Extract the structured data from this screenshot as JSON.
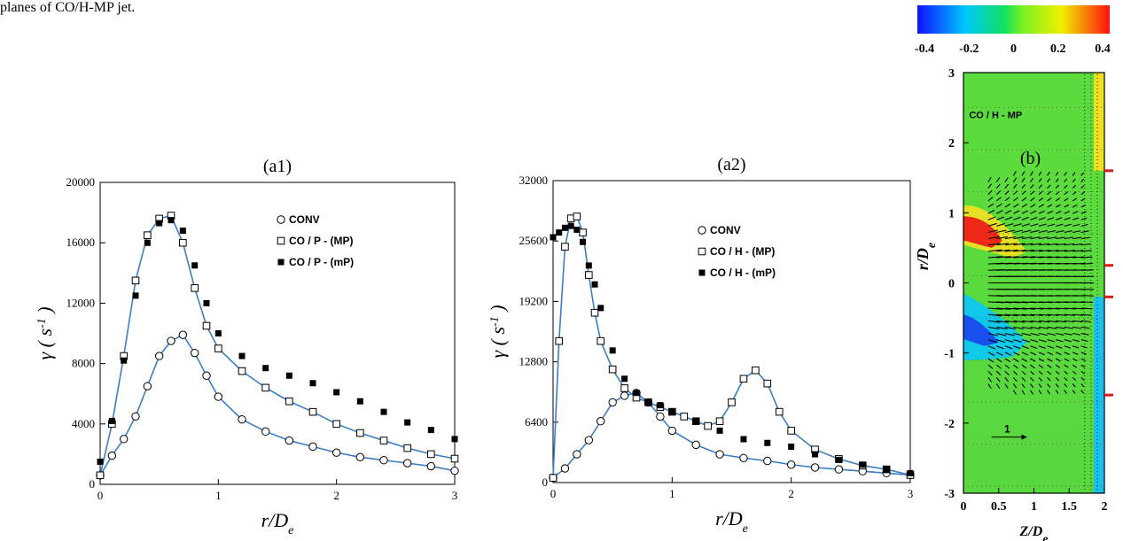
{
  "caption": "planes of CO/H-MP jet.",
  "chart_data": [
    {
      "type": "scatter",
      "title": "(a1)",
      "xlabel": "r/D_e",
      "ylabel": "γ ( s^-1 )",
      "xlim": [
        0,
        3
      ],
      "ylim": [
        0,
        20000
      ],
      "x_ticks": [
        "0",
        "1",
        "2",
        "3"
      ],
      "y_ticks": [
        "0",
        "4000",
        "8000",
        "12000",
        "16000",
        "20000"
      ],
      "legend_position": "upper-right",
      "series": [
        {
          "name": "CONV",
          "marker": "open-circle",
          "line": true,
          "x": [
            0.0,
            0.1,
            0.2,
            0.3,
            0.4,
            0.5,
            0.6,
            0.7,
            0.8,
            0.9,
            1.0,
            1.2,
            1.4,
            1.6,
            1.8,
            2.0,
            2.2,
            2.4,
            2.6,
            2.8,
            3.0
          ],
          "y": [
            600,
            1900,
            3000,
            4500,
            6500,
            8500,
            9500,
            9900,
            8700,
            7200,
            5800,
            4300,
            3500,
            2900,
            2500,
            2100,
            1800,
            1600,
            1400,
            1200,
            900
          ]
        },
        {
          "name": "CO / P - (MP)",
          "marker": "open-square",
          "line": true,
          "x": [
            0.0,
            0.1,
            0.2,
            0.3,
            0.4,
            0.5,
            0.6,
            0.7,
            0.8,
            0.9,
            1.0,
            1.2,
            1.4,
            1.6,
            1.8,
            2.0,
            2.2,
            2.4,
            2.6,
            2.8,
            3.0
          ],
          "y": [
            600,
            4000,
            8500,
            13500,
            16500,
            17600,
            17800,
            16000,
            13000,
            10500,
            9000,
            7500,
            6400,
            5500,
            4800,
            4000,
            3400,
            2900,
            2400,
            2000,
            1700
          ]
        },
        {
          "name": "CO / P - (mP)",
          "marker": "filled-square",
          "line": false,
          "x": [
            0.0,
            0.1,
            0.2,
            0.3,
            0.4,
            0.5,
            0.6,
            0.7,
            0.8,
            0.9,
            1.0,
            1.2,
            1.4,
            1.6,
            1.8,
            2.0,
            2.2,
            2.4,
            2.6,
            2.8,
            3.0
          ],
          "y": [
            1500,
            4200,
            8200,
            12500,
            16000,
            17300,
            17500,
            16800,
            14500,
            12000,
            10000,
            8500,
            7700,
            7200,
            6700,
            6100,
            5500,
            4800,
            4100,
            3600,
            3000
          ]
        }
      ]
    },
    {
      "type": "scatter",
      "title": "(a2)",
      "xlabel": "r/D_e",
      "ylabel": "γ ( s^-1 )",
      "xlim": [
        0,
        3
      ],
      "ylim": [
        0,
        32000
      ],
      "x_ticks": [
        "0",
        "1",
        "2",
        "3"
      ],
      "y_ticks": [
        "0",
        "6400",
        "12800",
        "19200",
        "25600",
        "32000"
      ],
      "legend_position": "upper-right",
      "series": [
        {
          "name": "CONV",
          "marker": "open-circle",
          "line": true,
          "x": [
            0.0,
            0.1,
            0.2,
            0.3,
            0.4,
            0.5,
            0.6,
            0.7,
            0.8,
            0.9,
            1.0,
            1.2,
            1.4,
            1.6,
            1.8,
            2.0,
            2.2,
            2.4,
            2.6,
            2.8,
            3.0
          ],
          "y": [
            500,
            1500,
            3000,
            4500,
            6500,
            8500,
            9200,
            9500,
            8500,
            7000,
            5500,
            4000,
            3000,
            2600,
            2300,
            1900,
            1600,
            1400,
            1200,
            1000,
            800
          ]
        },
        {
          "name": "CO / H - (MP)",
          "marker": "open-square",
          "line": true,
          "x": [
            0.0,
            0.05,
            0.1,
            0.15,
            0.2,
            0.25,
            0.3,
            0.35,
            0.4,
            0.5,
            0.6,
            0.7,
            0.8,
            0.9,
            1.0,
            1.1,
            1.2,
            1.3,
            1.4,
            1.5,
            1.6,
            1.7,
            1.8,
            1.9,
            2.0,
            2.2,
            2.4,
            2.6,
            2.8,
            3.0
          ],
          "y": [
            500,
            15000,
            25000,
            28000,
            28200,
            26500,
            22000,
            18000,
            15000,
            12000,
            10000,
            9000,
            8500,
            8000,
            7500,
            7000,
            6500,
            6000,
            6500,
            8500,
            11000,
            11900,
            10500,
            7500,
            5500,
            3500,
            2500,
            1800,
            1400,
            800
          ]
        },
        {
          "name": "CO / H - (mP)",
          "marker": "filled-square",
          "line": false,
          "x": [
            0.0,
            0.05,
            0.1,
            0.15,
            0.2,
            0.25,
            0.3,
            0.35,
            0.4,
            0.5,
            0.6,
            0.7,
            0.8,
            0.9,
            1.0,
            1.2,
            1.4,
            1.6,
            1.8,
            2.0,
            2.2,
            2.4,
            2.6,
            2.8,
            3.0
          ],
          "y": [
            26000,
            26500,
            27000,
            27200,
            26800,
            25500,
            23000,
            21000,
            18500,
            14000,
            11000,
            9500,
            8500,
            8200,
            7500,
            6500,
            5500,
            4600,
            4200,
            3800,
            3000,
            2400,
            1900,
            1400,
            1000
          ]
        }
      ]
    },
    {
      "type": "heatmap",
      "title": "(b)",
      "annotation": "CO / H - MP",
      "vector_label": "1",
      "xlabel": "Z/D_e",
      "ylabel": "r/D_e",
      "xlim": [
        0,
        2
      ],
      "ylim": [
        -3,
        3
      ],
      "x_ticks": [
        "0",
        "0.5",
        "1",
        "1.5",
        "2"
      ],
      "y_ticks": [
        "-3",
        "-2",
        "-1",
        "0",
        "1",
        "2",
        "3"
      ],
      "colorbar": {
        "range": [
          -0.4,
          0.4
        ],
        "ticks": [
          "-0.4",
          "-0.2",
          "0",
          "0.2",
          "0.4"
        ],
        "colors": [
          "#1010ff",
          "#00c8ff",
          "#10e060",
          "#7cf020",
          "#f0f000",
          "#ff1010"
        ]
      },
      "red_markers_r": [
        1.6,
        0.25,
        -0.2,
        -1.6
      ]
    }
  ]
}
